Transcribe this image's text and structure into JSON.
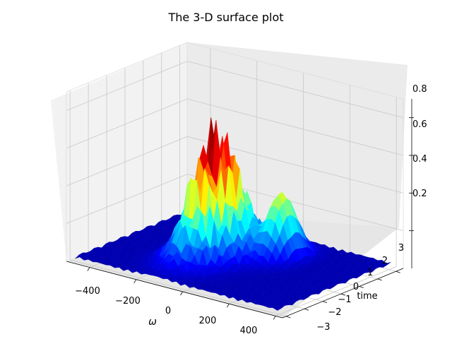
{
  "chart_data": {
    "type": "surface3d",
    "title": "The 3-D surface plot",
    "xlabel": "ω",
    "ylabel": "time",
    "zlabel": "",
    "xlim": [
      -500,
      430
    ],
    "ylim": [
      -3.2,
      3.4
    ],
    "zlim": [
      0.0,
      0.9
    ],
    "xticks": [
      "−400",
      "−200",
      "0",
      "200",
      "400"
    ],
    "yticks": [
      "−3",
      "−2",
      "−1",
      "0",
      "1",
      "2",
      "3"
    ],
    "zticks": [
      "0.2",
      "0.4",
      "0.6",
      "0.8"
    ],
    "grid": true,
    "colormap": "jet",
    "surface_description": "Near-zero floor across the domain with a tall ridge of sharp spikes around ω ≈ −200 to 0, peaking near 0.85 at time ≈ −1 to 1"
  }
}
